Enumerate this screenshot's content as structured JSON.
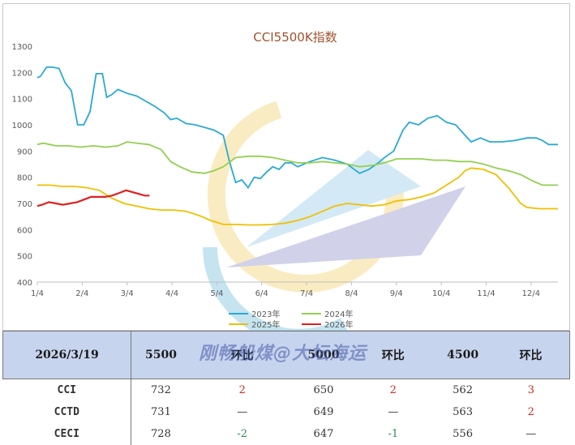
{
  "chart_data": {
    "type": "line",
    "title": "CCI5500K指数",
    "ylim": [
      400,
      1300
    ],
    "yticks": [
      "400",
      "500",
      "600",
      "700",
      "800",
      "900",
      "1000",
      "1100",
      "1200",
      "1300"
    ],
    "xticks": [
      "1/4",
      "2/4",
      "3/4",
      "4/4",
      "5/4",
      "6/4",
      "7/4",
      "8/4",
      "9/4",
      "10/4",
      "11/4",
      "12/4"
    ],
    "series": [
      {
        "name": "2023年",
        "color": "#2aa9d6",
        "points": [
          [
            0,
            1180
          ],
          [
            0.05,
            1185
          ],
          [
            0.15,
            1220
          ],
          [
            0.25,
            1220
          ],
          [
            0.35,
            1215
          ],
          [
            0.45,
            1160
          ],
          [
            0.55,
            1130
          ],
          [
            0.65,
            1000
          ],
          [
            0.75,
            1000
          ],
          [
            0.85,
            1050
          ],
          [
            0.95,
            1195
          ],
          [
            1.05,
            1195
          ],
          [
            1.12,
            1105
          ],
          [
            1.2,
            1115
          ],
          [
            1.3,
            1135
          ],
          [
            1.45,
            1120
          ],
          [
            1.6,
            1110
          ],
          [
            1.75,
            1090
          ],
          [
            1.9,
            1070
          ],
          [
            2.05,
            1045
          ],
          [
            2.15,
            1020
          ],
          [
            2.25,
            1025
          ],
          [
            2.4,
            1005
          ],
          [
            2.55,
            1000
          ],
          [
            2.7,
            990
          ],
          [
            2.85,
            980
          ],
          [
            3.0,
            960
          ],
          [
            3.1,
            860
          ],
          [
            3.2,
            780
          ],
          [
            3.3,
            790
          ],
          [
            3.4,
            760
          ],
          [
            3.5,
            800
          ],
          [
            3.6,
            795
          ],
          [
            3.7,
            820
          ],
          [
            3.8,
            840
          ],
          [
            3.9,
            830
          ],
          [
            4.0,
            855
          ],
          [
            4.1,
            855
          ],
          [
            4.2,
            840
          ],
          [
            4.4,
            860
          ],
          [
            4.6,
            875
          ],
          [
            4.8,
            865
          ],
          [
            5.0,
            850
          ],
          [
            5.2,
            815
          ],
          [
            5.35,
            830
          ],
          [
            5.5,
            855
          ],
          [
            5.6,
            875
          ],
          [
            5.75,
            900
          ],
          [
            5.9,
            980
          ],
          [
            6.0,
            1010
          ],
          [
            6.15,
            1000
          ],
          [
            6.3,
            1025
          ],
          [
            6.45,
            1035
          ],
          [
            6.6,
            1010
          ],
          [
            6.75,
            1000
          ],
          [
            6.9,
            960
          ],
          [
            7.0,
            935
          ],
          [
            7.15,
            950
          ],
          [
            7.3,
            935
          ],
          [
            7.5,
            935
          ],
          [
            7.7,
            940
          ],
          [
            7.9,
            950
          ],
          [
            8.05,
            950
          ],
          [
            8.15,
            940
          ],
          [
            8.25,
            925
          ],
          [
            8.4,
            925
          ]
        ]
      },
      {
        "name": "2024年",
        "color": "#92d050",
        "points": [
          [
            0,
            925
          ],
          [
            0.1,
            930
          ],
          [
            0.3,
            920
          ],
          [
            0.5,
            920
          ],
          [
            0.7,
            915
          ],
          [
            0.9,
            920
          ],
          [
            1.1,
            915
          ],
          [
            1.3,
            920
          ],
          [
            1.45,
            935
          ],
          [
            1.6,
            930
          ],
          [
            1.8,
            925
          ],
          [
            2.0,
            905
          ],
          [
            2.15,
            860
          ],
          [
            2.3,
            840
          ],
          [
            2.5,
            820
          ],
          [
            2.7,
            815
          ],
          [
            2.85,
            825
          ],
          [
            3.0,
            840
          ],
          [
            3.2,
            875
          ],
          [
            3.4,
            880
          ],
          [
            3.6,
            880
          ],
          [
            3.8,
            875
          ],
          [
            4.0,
            865
          ],
          [
            4.2,
            855
          ],
          [
            4.4,
            855
          ],
          [
            4.6,
            860
          ],
          [
            4.8,
            855
          ],
          [
            5.0,
            850
          ],
          [
            5.2,
            840
          ],
          [
            5.4,
            845
          ],
          [
            5.6,
            855
          ],
          [
            5.8,
            870
          ],
          [
            6.0,
            870
          ],
          [
            6.2,
            870
          ],
          [
            6.4,
            865
          ],
          [
            6.6,
            865
          ],
          [
            6.8,
            860
          ],
          [
            7.0,
            860
          ],
          [
            7.2,
            850
          ],
          [
            7.4,
            835
          ],
          [
            7.6,
            825
          ],
          [
            7.8,
            810
          ],
          [
            8.0,
            785
          ],
          [
            8.15,
            770
          ],
          [
            8.4,
            770
          ]
        ]
      },
      {
        "name": "2025年",
        "color": "#f0c000",
        "points": [
          [
            0,
            770
          ],
          [
            0.2,
            770
          ],
          [
            0.4,
            765
          ],
          [
            0.6,
            765
          ],
          [
            0.8,
            760
          ],
          [
            1.0,
            750
          ],
          [
            1.2,
            720
          ],
          [
            1.4,
            700
          ],
          [
            1.6,
            690
          ],
          [
            1.8,
            680
          ],
          [
            2.0,
            675
          ],
          [
            2.2,
            675
          ],
          [
            2.4,
            670
          ],
          [
            2.6,
            655
          ],
          [
            2.8,
            635
          ],
          [
            3.0,
            620
          ],
          [
            3.2,
            620
          ],
          [
            3.4,
            618
          ],
          [
            3.6,
            618
          ],
          [
            3.8,
            620
          ],
          [
            4.0,
            625
          ],
          [
            4.2,
            635
          ],
          [
            4.4,
            650
          ],
          [
            4.6,
            670
          ],
          [
            4.8,
            690
          ],
          [
            5.0,
            700
          ],
          [
            5.2,
            695
          ],
          [
            5.4,
            690
          ],
          [
            5.6,
            695
          ],
          [
            5.8,
            710
          ],
          [
            6.0,
            715
          ],
          [
            6.2,
            725
          ],
          [
            6.4,
            740
          ],
          [
            6.6,
            770
          ],
          [
            6.8,
            800
          ],
          [
            6.9,
            825
          ],
          [
            7.0,
            835
          ],
          [
            7.2,
            830
          ],
          [
            7.4,
            810
          ],
          [
            7.6,
            760
          ],
          [
            7.8,
            700
          ],
          [
            7.9,
            685
          ],
          [
            8.1,
            680
          ],
          [
            8.4,
            680
          ]
        ]
      },
      {
        "name": "2026年",
        "color": "#e02020",
        "points": [
          [
            0,
            690
          ],
          [
            0.1,
            695
          ],
          [
            0.25,
            705
          ],
          [
            0.4,
            700
          ],
          [
            0.55,
            695
          ],
          [
            0.7,
            700
          ],
          [
            0.85,
            705
          ],
          [
            1.0,
            715
          ],
          [
            1.15,
            725
          ],
          [
            1.3,
            725
          ],
          [
            1.45,
            725
          ],
          [
            1.6,
            730
          ],
          [
            1.75,
            740
          ],
          [
            1.9,
            750
          ],
          [
            2.0,
            745
          ],
          [
            2.1,
            740
          ],
          [
            2.2,
            735
          ],
          [
            2.3,
            730
          ],
          [
            2.4,
            730
          ]
        ]
      }
    ],
    "legend": [
      "2023年",
      "2024年",
      "2025年",
      "2026年"
    ],
    "legend_position": "bottom"
  },
  "table": {
    "header": {
      "date": "2026/3/19",
      "c1": "5500",
      "c2": "环比",
      "c3": "5000",
      "c4": "环比",
      "c5": "4500",
      "c6": "环比"
    },
    "rows": [
      {
        "name": "CCI",
        "v1": "732",
        "d1": "2",
        "d1_dir": "up",
        "v2": "650",
        "d2": "2",
        "d2_dir": "up",
        "v3": "562",
        "d3": "3",
        "d3_dir": "up"
      },
      {
        "name": "CCTD",
        "v1": "731",
        "d1": "—",
        "d1_dir": "flat",
        "v2": "649",
        "d2": "—",
        "d2_dir": "flat",
        "v3": "563",
        "d3": "2",
        "d3_dir": "up"
      },
      {
        "name": "CECI",
        "v1": "728",
        "d1": "-2",
        "d1_dir": "down",
        "v2": "647",
        "d2": "-1",
        "d2_dir": "down",
        "v3": "556",
        "d3": "—",
        "d3_dir": "flat"
      }
    ]
  },
  "watermark": "刚畅船煤@大坛海运"
}
